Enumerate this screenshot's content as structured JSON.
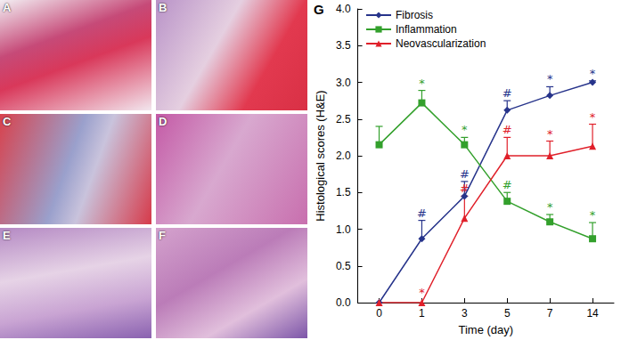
{
  "panels": [
    "A",
    "B",
    "C",
    "D",
    "E",
    "F",
    "G"
  ],
  "chart_data": {
    "type": "line",
    "x_label": "Time (day)",
    "y_label": "Histological scores (H&E)",
    "categories": [
      "0",
      "1",
      "3",
      "5",
      "7",
      "14"
    ],
    "ylim": [
      0,
      4
    ],
    "yticks": [
      {
        "value": 0,
        "label": "0.0"
      },
      {
        "value": 0.5,
        "label": "0.5"
      },
      {
        "value": 1,
        "label": "1.0"
      },
      {
        "value": 1.5,
        "label": "1.5"
      },
      {
        "value": 2,
        "label": "2.0"
      },
      {
        "value": 2.5,
        "label": "2.5"
      },
      {
        "value": 3,
        "label": "3.0"
      },
      {
        "value": 3.5,
        "label": "3.5"
      },
      {
        "value": 4,
        "label": "4.0"
      }
    ],
    "grid": false,
    "legend": "upper left",
    "series": [
      {
        "name": "Fibrosis",
        "color": "#27348b",
        "marker": "diamond",
        "values": [
          0,
          0.87,
          1.45,
          2.62,
          2.82,
          3.0
        ],
        "errors": [
          0,
          0.25,
          0.2,
          0.13,
          0.12,
          0.02
        ],
        "annotations": [
          null,
          "#",
          "#",
          "#",
          "*",
          "*"
        ]
      },
      {
        "name": "Inflammation",
        "color": "#33a02c",
        "marker": "square",
        "values": [
          2.15,
          2.72,
          2.15,
          1.38,
          1.1,
          0.87
        ],
        "errors": [
          0.25,
          0.17,
          0.1,
          0.12,
          0.1,
          0.22
        ],
        "annotations": [
          null,
          "*",
          "*",
          "#",
          "*",
          "*"
        ]
      },
      {
        "name": "Neovascularization",
        "color": "#e0202a",
        "marker": "triangle",
        "values": [
          0,
          0,
          1.15,
          2.0,
          2.0,
          2.13
        ],
        "errors": [
          0,
          0,
          0.3,
          0.25,
          0.2,
          0.3
        ],
        "annotations": [
          null,
          "*",
          "#",
          "#",
          "*",
          "*"
        ]
      }
    ]
  }
}
